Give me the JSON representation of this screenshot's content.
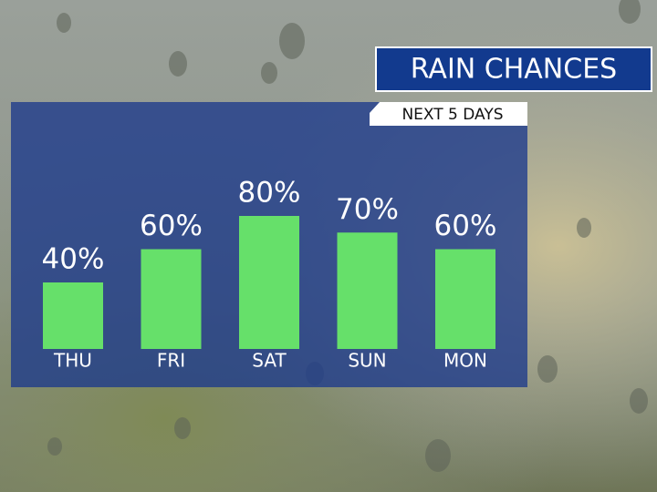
{
  "chart_data": {
    "type": "bar",
    "title": "RAIN CHANCES",
    "subtitle": "NEXT 5 DAYS",
    "categories": [
      "THU",
      "FRI",
      "SAT",
      "SUN",
      "MON"
    ],
    "values": [
      40,
      60,
      80,
      70,
      60
    ],
    "value_labels": [
      "40%",
      "60%",
      "80%",
      "70%",
      "60%"
    ],
    "color": "#66e06a"
  }
}
